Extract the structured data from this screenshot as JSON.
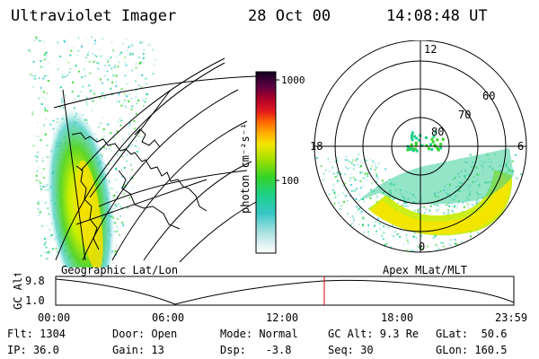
{
  "header": {
    "title": "Ultraviolet Imager",
    "date": "28 Oct 00",
    "time": "14:08:48 UT"
  },
  "colorbar": {
    "ticks": [
      "1000",
      "100"
    ],
    "unit_label": "photon cm⁻²s⁻¹"
  },
  "polar_plot": {
    "lat_labels": [
      "80",
      "70",
      "60"
    ],
    "mlt_labels": [
      "12",
      "18",
      "6",
      "0"
    ],
    "caption": "Apex MLat/MLT"
  },
  "geo_plot": {
    "caption": "Geographic Lat/Lon"
  },
  "altitude_plot": {
    "ylabel": "GC Alt",
    "y_ticks": [
      "9.8",
      "1.0"
    ],
    "x_ticks": [
      "00:00",
      "06:00",
      "12:00",
      "18:00",
      "23:59"
    ],
    "current_time_marker": "14:08"
  },
  "footer": {
    "col1": [
      "Flt: 1304",
      "IP: 36.0"
    ],
    "col2": [
      "Door: Open",
      "Gain: 13"
    ],
    "col3": [
      "Mode: Normal",
      "Dsp:   -3.8"
    ],
    "col4": [
      "GC Alt: 9.3 Re",
      "Seq: 30"
    ],
    "col5": [
      "GLat:  50.6",
      "GLon: 160.5"
    ]
  }
}
